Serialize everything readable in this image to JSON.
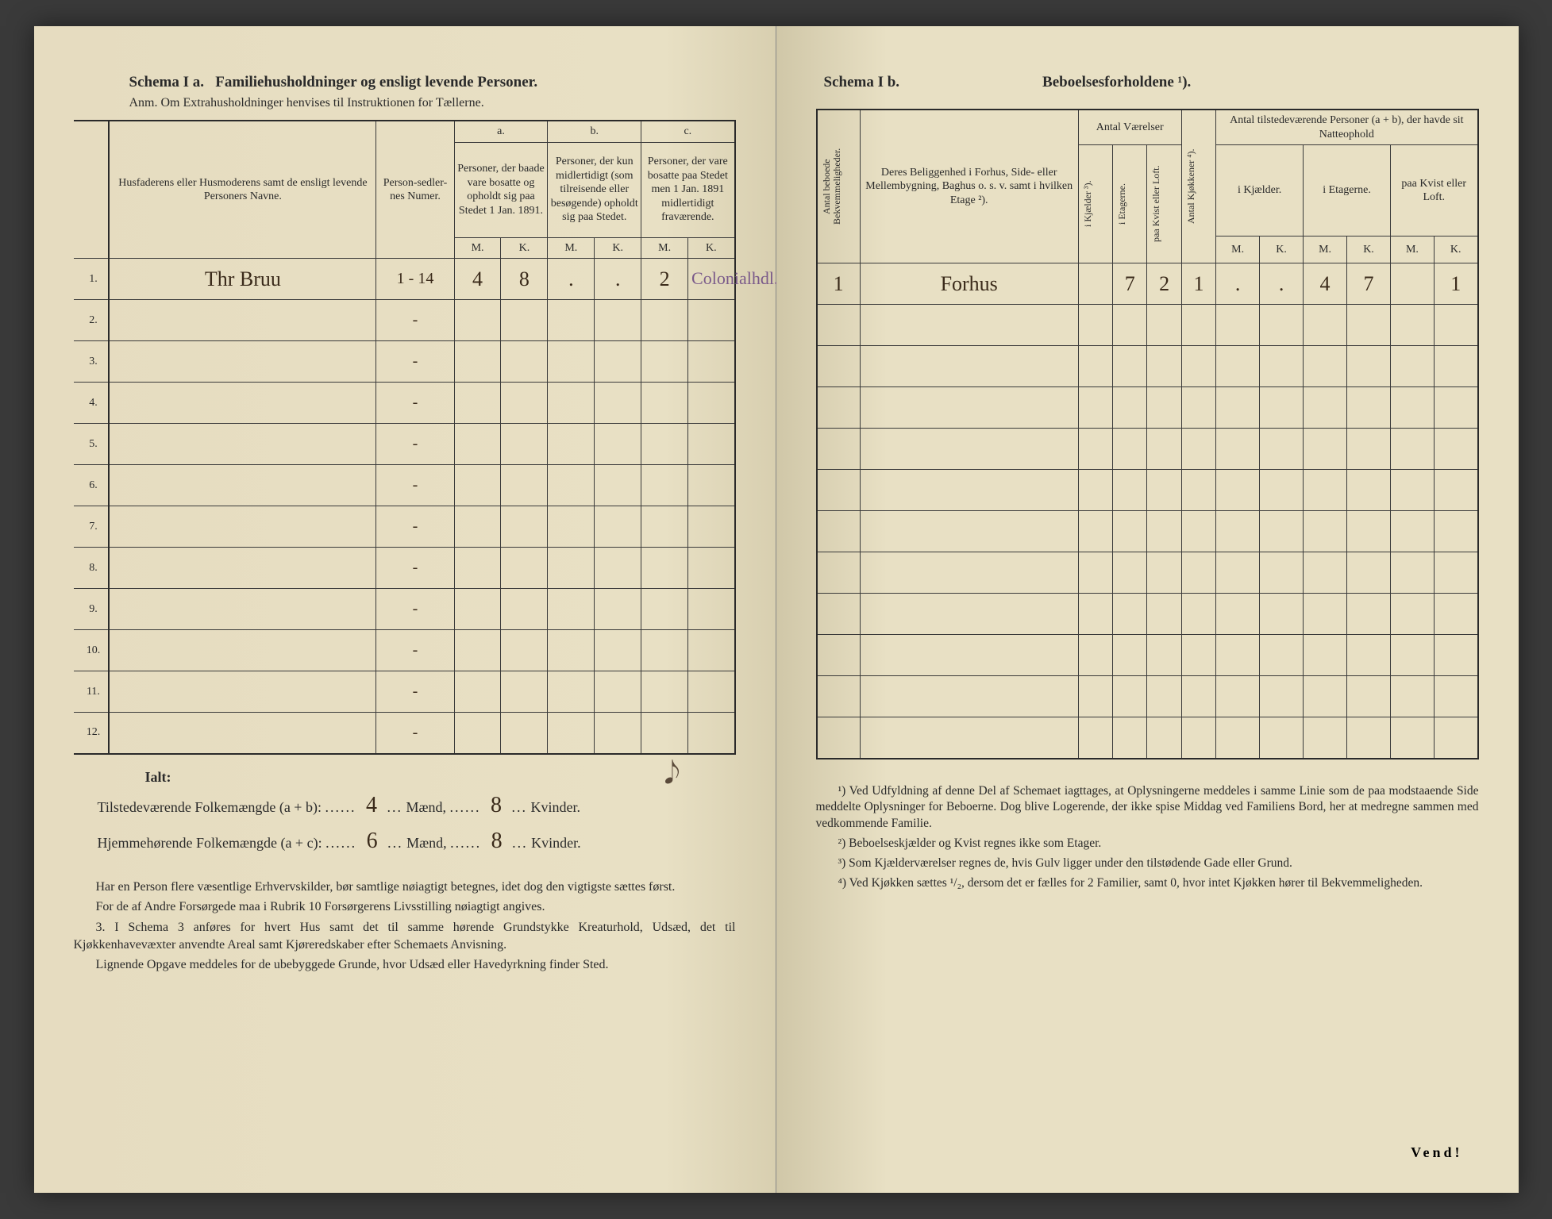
{
  "left": {
    "title_a": "Schema I a.",
    "title_b": "Familiehusholdninger og ensligt levende Personer.",
    "subtitle": "Anm. Om Extrahusholdninger henvises til Instruktionen for Tællerne.",
    "col_name_header": "Husfaderens eller Husmoderens samt de ensligt levende Personers Navne.",
    "col_person": "Person-sedler-nes Numer.",
    "abc": {
      "a": "a.",
      "b": "b.",
      "c": "c."
    },
    "col_a": "Personer, der baade vare bosatte og opholdt sig paa Stedet 1 Jan. 1891.",
    "col_b": "Personer, der kun midlertidigt (som tilreisende eller besøgende) opholdt sig paa Stedet.",
    "col_c": "Personer, der vare bosatte paa Stedet men 1 Jan. 1891 midlertidigt fraværende.",
    "M": "M.",
    "K": "K.",
    "rows": [
      {
        "n": "1.",
        "name": "Thr Bruu",
        "num": "1 - 14",
        "am": "4",
        "ak": "8",
        "bm": ".",
        "bk": ".",
        "cm": "2",
        "ck": "Colonialhdl."
      },
      {
        "n": "2.",
        "name": "",
        "num": "-",
        "am": "",
        "ak": "",
        "bm": "",
        "bk": "",
        "cm": "",
        "ck": ""
      },
      {
        "n": "3.",
        "name": "",
        "num": "-",
        "am": "",
        "ak": "",
        "bm": "",
        "bk": "",
        "cm": "",
        "ck": ""
      },
      {
        "n": "4.",
        "name": "",
        "num": "-",
        "am": "",
        "ak": "",
        "bm": "",
        "bk": "",
        "cm": "",
        "ck": ""
      },
      {
        "n": "5.",
        "name": "",
        "num": "-",
        "am": "",
        "ak": "",
        "bm": "",
        "bk": "",
        "cm": "",
        "ck": ""
      },
      {
        "n": "6.",
        "name": "",
        "num": "-",
        "am": "",
        "ak": "",
        "bm": "",
        "bk": "",
        "cm": "",
        "ck": ""
      },
      {
        "n": "7.",
        "name": "",
        "num": "-",
        "am": "",
        "ak": "",
        "bm": "",
        "bk": "",
        "cm": "",
        "ck": ""
      },
      {
        "n": "8.",
        "name": "",
        "num": "-",
        "am": "",
        "ak": "",
        "bm": "",
        "bk": "",
        "cm": "",
        "ck": ""
      },
      {
        "n": "9.",
        "name": "",
        "num": "-",
        "am": "",
        "ak": "",
        "bm": "",
        "bk": "",
        "cm": "",
        "ck": ""
      },
      {
        "n": "10.",
        "name": "",
        "num": "-",
        "am": "",
        "ak": "",
        "bm": "",
        "bk": "",
        "cm": "",
        "ck": ""
      },
      {
        "n": "11.",
        "name": "",
        "num": "-",
        "am": "",
        "ak": "",
        "bm": "",
        "bk": "",
        "cm": "",
        "ck": ""
      },
      {
        "n": "12.",
        "name": "",
        "num": "-",
        "am": "",
        "ak": "",
        "bm": "",
        "bk": "",
        "cm": "",
        "ck": ""
      }
    ],
    "ialt": "Ialt:",
    "sum1_pre": "Tilstedeværende Folkemængde (a + b): ",
    "sum1_m": "4",
    "sum1_mid": "Mænd,",
    "sum1_k": "8",
    "sum1_end": "Kvinder.",
    "sum2_pre": "Hjemmehørende Folkemængde (a + c): ",
    "sum2_m": "6",
    "sum2_k": "8",
    "body": [
      "Har en Person flere væsentlige Erhvervskilder, bør samtlige nøiagtigt betegnes, idet dog den vigtigste sættes først.",
      "For de af Andre Forsørgede maa i Rubrik 10 Forsørgerens Livsstilling nøiagtigt angives.",
      "3. I Schema 3 anføres for hvert Hus samt det til samme hørende Grundstykke Kreaturhold, Udsæd, det til Kjøkkenhavevæxter anvendte Areal samt Kjøreredskaber efter Schemaets Anvisning.",
      "Lignende Opgave meddeles for de ubebyggede Grunde, hvor Udsæd eller Havedyrkning finder Sted."
    ]
  },
  "right": {
    "title_a": "Schema I b.",
    "title_b": "Beboelsesforholdene ¹).",
    "vcol1": "Antal beboede Bekvemmeligheder.",
    "col_belig": "Deres Beliggenhed i Forhus, Side- eller Mellembygning, Baghus o. s. v. samt i hvilken Etage ²).",
    "grp_vaer": "Antal Værelser",
    "vcol2": "i Kjælder ³).",
    "vcol3": "i Etagerne.",
    "vcol4": "paa Kvist eller Loft.",
    "vcol5": "Antal Kjøkkener ⁴).",
    "grp_pers": "Antal tilstedeværende Personer (a + b), der havde sit Natteophold",
    "sub_kj": "i Kjælder.",
    "sub_et": "i Etagerne.",
    "sub_kv": "paa Kvist eller Loft.",
    "M": "M.",
    "K": "K.",
    "rows": [
      {
        "bek": "1",
        "bel": "Forhus",
        "kj": "",
        "et": "7",
        "kv": "2",
        "kk": "1",
        "km": ".",
        "kkk": ".",
        "em": "4",
        "ek": "7",
        "vm": "",
        "vk": "1"
      },
      {
        "bek": "",
        "bel": "",
        "kj": "",
        "et": "",
        "kv": "",
        "kk": "",
        "km": "",
        "kkk": "",
        "em": "",
        "ek": "",
        "vm": "",
        "vk": ""
      },
      {
        "bek": "",
        "bel": "",
        "kj": "",
        "et": "",
        "kv": "",
        "kk": "",
        "km": "",
        "kkk": "",
        "em": "",
        "ek": "",
        "vm": "",
        "vk": ""
      },
      {
        "bek": "",
        "bel": "",
        "kj": "",
        "et": "",
        "kv": "",
        "kk": "",
        "km": "",
        "kkk": "",
        "em": "",
        "ek": "",
        "vm": "",
        "vk": ""
      },
      {
        "bek": "",
        "bel": "",
        "kj": "",
        "et": "",
        "kv": "",
        "kk": "",
        "km": "",
        "kkk": "",
        "em": "",
        "ek": "",
        "vm": "",
        "vk": ""
      },
      {
        "bek": "",
        "bel": "",
        "kj": "",
        "et": "",
        "kv": "",
        "kk": "",
        "km": "",
        "kkk": "",
        "em": "",
        "ek": "",
        "vm": "",
        "vk": ""
      },
      {
        "bek": "",
        "bel": "",
        "kj": "",
        "et": "",
        "kv": "",
        "kk": "",
        "km": "",
        "kkk": "",
        "em": "",
        "ek": "",
        "vm": "",
        "vk": ""
      },
      {
        "bek": "",
        "bel": "",
        "kj": "",
        "et": "",
        "kv": "",
        "kk": "",
        "km": "",
        "kkk": "",
        "em": "",
        "ek": "",
        "vm": "",
        "vk": ""
      },
      {
        "bek": "",
        "bel": "",
        "kj": "",
        "et": "",
        "kv": "",
        "kk": "",
        "km": "",
        "kkk": "",
        "em": "",
        "ek": "",
        "vm": "",
        "vk": ""
      },
      {
        "bek": "",
        "bel": "",
        "kj": "",
        "et": "",
        "kv": "",
        "kk": "",
        "km": "",
        "kkk": "",
        "em": "",
        "ek": "",
        "vm": "",
        "vk": ""
      },
      {
        "bek": "",
        "bel": "",
        "kj": "",
        "et": "",
        "kv": "",
        "kk": "",
        "km": "",
        "kkk": "",
        "em": "",
        "ek": "",
        "vm": "",
        "vk": ""
      },
      {
        "bek": "",
        "bel": "",
        "kj": "",
        "et": "",
        "kv": "",
        "kk": "",
        "km": "",
        "kkk": "",
        "em": "",
        "ek": "",
        "vm": "",
        "vk": ""
      }
    ],
    "footnotes": [
      "¹) Ved Udfyldning af denne Del af Schemaet iagttages, at Oplysningerne meddeles i samme Linie som de paa modstaaende Side meddelte Oplysninger for Beboerne. Dog blive Logerende, der ikke spise Middag ved Familiens Bord, her at medregne sammen med vedkommende Familie.",
      "²) Beboelseskjælder og Kvist regnes ikke som Etager.",
      "³) Som Kjælderværelser regnes de, hvis Gulv ligger under den tilstødende Gade eller Grund.",
      "⁴) Ved Kjøkken sættes ¹/₂, dersom det er fælles for 2 Familier, samt 0, hvor intet Kjøkken hører til Bekvemmeligheden."
    ],
    "vend": "Vend!"
  }
}
